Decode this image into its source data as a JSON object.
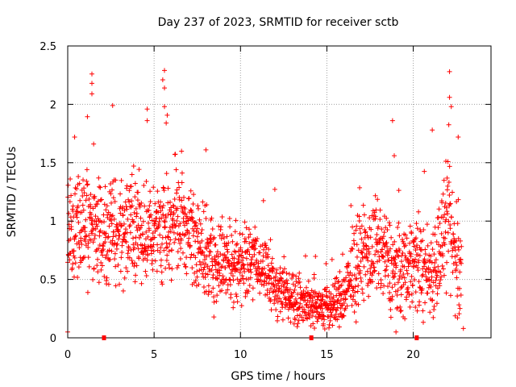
{
  "chart_data": {
    "type": "scatter",
    "title": "Day 237 of 2023, SRMTID for receiver sctb",
    "xlabel": "GPS time / hours",
    "ylabel": "SRMTID / TECUs",
    "xlim": [
      0,
      24.5
    ],
    "ylim": [
      0,
      2.5
    ],
    "xticks": [
      0,
      5,
      10,
      15,
      20
    ],
    "xtick_labels": [
      "0",
      "5",
      "10",
      "15",
      "20"
    ],
    "yticks": [
      0,
      0.5,
      1,
      1.5,
      2,
      2.5
    ],
    "ytick_labels": [
      "0",
      "0.5",
      "1",
      "1.5",
      "2",
      "2.5"
    ],
    "grid": true,
    "marker": "+",
    "color": "#ff0000",
    "x_axis_markers": [
      2.1,
      14.1,
      20.2
    ],
    "envelope_note": "dense cloud of points sampled every ~0.02 h from 0 to ~22.8 h",
    "profile": [
      {
        "x": 0.0,
        "mean": 0.85,
        "spread": 0.35
      },
      {
        "x": 1.0,
        "mean": 0.95,
        "spread": 0.4
      },
      {
        "x": 2.0,
        "mean": 0.85,
        "spread": 0.35
      },
      {
        "x": 3.0,
        "mean": 0.9,
        "spread": 0.35
      },
      {
        "x": 4.0,
        "mean": 0.95,
        "spread": 0.35
      },
      {
        "x": 5.0,
        "mean": 0.85,
        "spread": 0.3
      },
      {
        "x": 6.0,
        "mean": 1.0,
        "spread": 0.35
      },
      {
        "x": 7.0,
        "mean": 0.9,
        "spread": 0.3
      },
      {
        "x": 8.0,
        "mean": 0.7,
        "spread": 0.3
      },
      {
        "x": 9.0,
        "mean": 0.6,
        "spread": 0.25
      },
      {
        "x": 10.0,
        "mean": 0.65,
        "spread": 0.25
      },
      {
        "x": 11.0,
        "mean": 0.65,
        "spread": 0.25
      },
      {
        "x": 12.0,
        "mean": 0.45,
        "spread": 0.2
      },
      {
        "x": 13.0,
        "mean": 0.35,
        "spread": 0.15
      },
      {
        "x": 14.0,
        "mean": 0.3,
        "spread": 0.15
      },
      {
        "x": 15.0,
        "mean": 0.25,
        "spread": 0.15
      },
      {
        "x": 16.0,
        "mean": 0.35,
        "spread": 0.2
      },
      {
        "x": 17.0,
        "mean": 0.7,
        "spread": 0.3
      },
      {
        "x": 18.0,
        "mean": 0.75,
        "spread": 0.3
      },
      {
        "x": 19.0,
        "mean": 0.55,
        "spread": 0.3
      },
      {
        "x": 20.0,
        "mean": 0.65,
        "spread": 0.3
      },
      {
        "x": 21.0,
        "mean": 0.55,
        "spread": 0.3
      },
      {
        "x": 22.0,
        "mean": 0.95,
        "spread": 0.4
      },
      {
        "x": 22.8,
        "mean": 0.5,
        "spread": 0.4
      }
    ],
    "peaks": [
      {
        "x": 1.4,
        "y": 2.26
      },
      {
        "x": 1.4,
        "y": 2.18
      },
      {
        "x": 1.4,
        "y": 2.09
      },
      {
        "x": 2.6,
        "y": 1.99
      },
      {
        "x": 4.6,
        "y": 1.96
      },
      {
        "x": 4.6,
        "y": 1.86
      },
      {
        "x": 5.6,
        "y": 2.29
      },
      {
        "x": 5.5,
        "y": 2.21
      },
      {
        "x": 5.6,
        "y": 2.14
      },
      {
        "x": 5.6,
        "y": 1.98
      },
      {
        "x": 5.7,
        "y": 1.84
      },
      {
        "x": 8.0,
        "y": 1.61
      },
      {
        "x": 18.8,
        "y": 1.86
      },
      {
        "x": 18.9,
        "y": 1.56
      },
      {
        "x": 21.1,
        "y": 1.78
      },
      {
        "x": 22.1,
        "y": 2.28
      },
      {
        "x": 22.1,
        "y": 2.06
      },
      {
        "x": 22.2,
        "y": 1.98
      },
      {
        "x": 22.6,
        "y": 1.72
      },
      {
        "x": 0.4,
        "y": 1.72
      },
      {
        "x": 1.5,
        "y": 1.66
      },
      {
        "x": 0.0,
        "y": 0.05
      },
      {
        "x": 19.0,
        "y": 0.05
      },
      {
        "x": 22.9,
        "y": 0.08
      }
    ]
  }
}
